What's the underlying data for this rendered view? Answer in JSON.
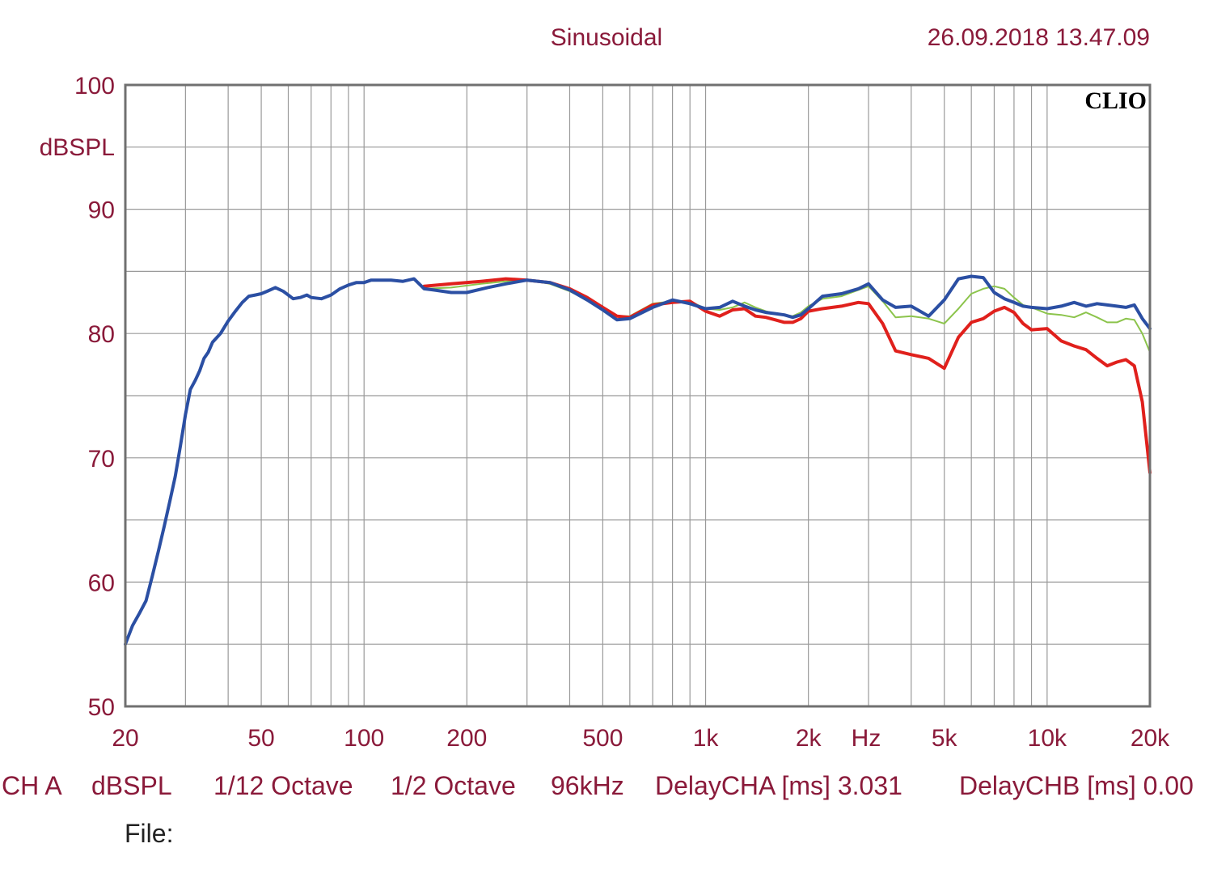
{
  "header": {
    "mode": "Sinusoidal",
    "timestamp": "26.09.2018 13.47.09"
  },
  "brand": "CLIO",
  "footer": {
    "channel": "CH A",
    "unit": "dBSPL",
    "resolution": "1/12 Octave",
    "smoothing": "1/2 Octave",
    "sample_rate": "96kHz",
    "delay_a": "DelayCHA [ms] 3.031",
    "delay_b": "DelayCHB [ms] 0.00",
    "file_label": "File:"
  },
  "colors": {
    "label": "#8a1a3a",
    "grid": "#9a9a9a",
    "frame": "#707070",
    "blue": "#2b4fa3",
    "red": "#e0201c",
    "green": "#8cc44c"
  },
  "chart_data": {
    "type": "line",
    "x_scale": "log",
    "xlim": [
      20,
      20000
    ],
    "ylim": [
      50,
      100
    ],
    "ylabel": "dBSPL",
    "x_ticks": [
      {
        "value": 20,
        "label": "20"
      },
      {
        "value": 50,
        "label": "50"
      },
      {
        "value": 100,
        "label": "100"
      },
      {
        "value": 200,
        "label": "200"
      },
      {
        "value": 500,
        "label": "500"
      },
      {
        "value": 1000,
        "label": "1k"
      },
      {
        "value": 2000,
        "label": "2k"
      },
      {
        "value": 5000,
        "label": "5k"
      },
      {
        "value": 10000,
        "label": "10k"
      },
      {
        "value": 20000,
        "label": "20k"
      }
    ],
    "x_unit_label": "Hz",
    "y_ticks": [
      50,
      60,
      70,
      80,
      90,
      100
    ],
    "grid": true,
    "series": [
      {
        "color": "#8cc44c",
        "width": 2,
        "x": [
          150,
          180,
          220,
          260,
          300,
          350,
          400,
          450,
          500,
          550,
          600,
          700,
          800,
          900,
          1000,
          1100,
          1200,
          1300,
          1400,
          1500,
          1600,
          1700,
          1800,
          1900,
          2000,
          2200,
          2500,
          2800,
          3000,
          3300,
          3600,
          4000,
          4500,
          5000,
          5500,
          6000,
          6500,
          7000,
          7500,
          8000,
          8500,
          9000,
          10000,
          11000,
          12000,
          13000,
          14000,
          15000,
          16000,
          17000,
          18000,
          19000,
          20000
        ],
        "y": [
          83.6,
          83.7,
          84,
          84.2,
          84.3,
          84,
          83.4,
          82.7,
          81.9,
          81.4,
          81.4,
          82.4,
          82.6,
          82.6,
          82,
          81.9,
          82.1,
          82.5,
          82.1,
          81.8,
          81.6,
          81.5,
          81.4,
          81.7,
          82.2,
          82.8,
          83,
          83.5,
          83.8,
          82.6,
          81.3,
          81.4,
          81.2,
          80.8,
          82,
          83.2,
          83.6,
          83.8,
          83.6,
          82.9,
          82.3,
          82.1,
          81.6,
          81.5,
          81.3,
          81.7,
          81.3,
          80.9,
          80.9,
          81.2,
          81.1,
          80,
          78.5
        ]
      },
      {
        "color": "#e0201c",
        "width": 4,
        "x": [
          150,
          180,
          220,
          260,
          300,
          350,
          400,
          450,
          500,
          550,
          600,
          700,
          800,
          900,
          1000,
          1100,
          1200,
          1300,
          1400,
          1500,
          1600,
          1700,
          1800,
          1900,
          2000,
          2200,
          2500,
          2800,
          3000,
          3300,
          3600,
          4000,
          4500,
          5000,
          5500,
          6000,
          6500,
          7000,
          7500,
          8000,
          8500,
          9000,
          10000,
          11000,
          12000,
          13000,
          14000,
          15000,
          16000,
          17000,
          18000,
          19000,
          20000
        ],
        "y": [
          83.8,
          84,
          84.2,
          84.4,
          84.3,
          84.1,
          83.6,
          82.9,
          82.1,
          81.4,
          81.3,
          82.3,
          82.5,
          82.6,
          81.8,
          81.4,
          81.9,
          82,
          81.4,
          81.3,
          81.1,
          80.9,
          80.9,
          81.2,
          81.8,
          82,
          82.2,
          82.5,
          82.4,
          80.8,
          78.6,
          78.3,
          78,
          77.2,
          79.7,
          80.9,
          81.2,
          81.8,
          82.1,
          81.7,
          80.8,
          80.3,
          80.4,
          79.4,
          79,
          78.7,
          78,
          77.4,
          77.7,
          77.9,
          77.4,
          74.5,
          68.8
        ]
      },
      {
        "color": "#2b4fa3",
        "width": 4,
        "x": [
          20,
          21,
          22,
          23,
          24,
          25,
          26,
          27,
          28,
          29,
          30,
          31,
          32,
          33,
          34,
          35,
          36,
          38,
          40,
          42,
          44,
          46,
          48,
          50,
          52,
          55,
          58,
          60,
          62,
          65,
          68,
          70,
          75,
          80,
          85,
          90,
          95,
          100,
          105,
          110,
          120,
          130,
          140,
          150,
          160,
          180,
          200,
          230,
          260,
          300,
          350,
          400,
          450,
          500,
          550,
          600,
          700,
          800,
          900,
          1000,
          1100,
          1200,
          1300,
          1400,
          1500,
          1600,
          1700,
          1800,
          1900,
          2000,
          2200,
          2500,
          2800,
          3000,
          3300,
          3600,
          4000,
          4500,
          5000,
          5500,
          6000,
          6500,
          7000,
          7500,
          8000,
          8500,
          9000,
          10000,
          11000,
          12000,
          13000,
          14000,
          15000,
          16000,
          17000,
          18000,
          19000,
          20000
        ],
        "y": [
          55,
          56.5,
          57.5,
          58.5,
          60.5,
          62.5,
          64.5,
          66.5,
          68.5,
          71,
          73.5,
          75.5,
          76.2,
          77,
          78,
          78.5,
          79.3,
          80,
          81,
          81.8,
          82.5,
          83,
          83.1,
          83.2,
          83.4,
          83.7,
          83.4,
          83.1,
          82.8,
          82.9,
          83.1,
          82.9,
          82.8,
          83.1,
          83.6,
          83.9,
          84.1,
          84.1,
          84.3,
          84.3,
          84.3,
          84.2,
          84.4,
          83.6,
          83.5,
          83.3,
          83.3,
          83.7,
          84,
          84.3,
          84.1,
          83.5,
          82.7,
          81.9,
          81.1,
          81.2,
          82.1,
          82.7,
          82.4,
          82,
          82.1,
          82.6,
          82.2,
          81.9,
          81.7,
          81.6,
          81.5,
          81.3,
          81.5,
          82,
          83,
          83.2,
          83.6,
          84,
          82.7,
          82.1,
          82.2,
          81.4,
          82.7,
          84.4,
          84.6,
          84.5,
          83.3,
          82.8,
          82.5,
          82.2,
          82.1,
          82,
          82.2,
          82.5,
          82.2,
          82.4,
          82.3,
          82.2,
          82.1,
          82.3,
          81.2,
          80.4
        ]
      }
    ]
  }
}
